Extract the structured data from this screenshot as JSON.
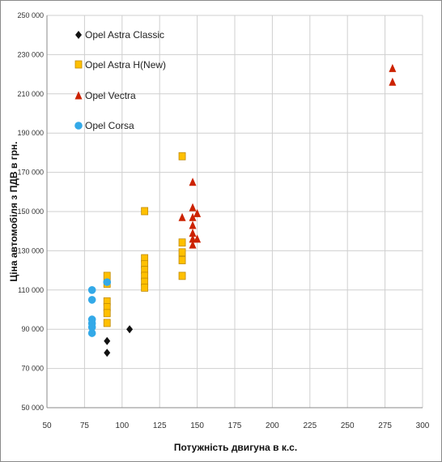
{
  "chart_data": {
    "type": "scatter",
    "xlabel": "Потужність двигуна в к.с.",
    "ylabel": "Ціна автомобіля з ПДВ в грн.",
    "xlim": [
      50,
      300
    ],
    "ylim": [
      50000,
      250000
    ],
    "x_ticks": [
      50,
      75,
      100,
      125,
      150,
      175,
      200,
      225,
      250,
      275,
      300
    ],
    "y_ticks": [
      50000,
      70000,
      90000,
      110000,
      130000,
      150000,
      170000,
      190000,
      210000,
      230000,
      250000
    ],
    "y_tick_labels": [
      "50 000",
      "70 000",
      "90 000",
      "110 000",
      "130 000",
      "150 000",
      "170 000",
      "190 000",
      "210 000",
      "230 000",
      "250 000"
    ],
    "grid": true,
    "legend_position": "top-left, inside plot",
    "series": [
      {
        "name": "Opel Astra Classic",
        "marker": "diamond",
        "color": "#111111",
        "points": [
          [
            90,
            84000
          ],
          [
            90,
            78000
          ],
          [
            105,
            90000
          ]
        ]
      },
      {
        "name": "Opel Astra H(New)",
        "marker": "square",
        "color": "#FFC000",
        "points": [
          [
            90,
            117000
          ],
          [
            90,
            113000
          ],
          [
            90,
            104000
          ],
          [
            90,
            101000
          ],
          [
            90,
            98000
          ],
          [
            90,
            93000
          ],
          [
            115,
            150000
          ],
          [
            115,
            126000
          ],
          [
            115,
            123000
          ],
          [
            115,
            120000
          ],
          [
            115,
            117000
          ],
          [
            115,
            114000
          ],
          [
            115,
            111000
          ],
          [
            140,
            178000
          ],
          [
            140,
            134000
          ],
          [
            140,
            129000
          ],
          [
            140,
            125000
          ],
          [
            140,
            117000
          ]
        ]
      },
      {
        "name": "Opel Vectra",
        "marker": "triangle",
        "color": "#CC2200",
        "points": [
          [
            140,
            147000
          ],
          [
            147,
            165000
          ],
          [
            147,
            152000
          ],
          [
            147,
            147000
          ],
          [
            147,
            143000
          ],
          [
            147,
            139000
          ],
          [
            147,
            136000
          ],
          [
            147,
            133000
          ],
          [
            150,
            149000
          ],
          [
            150,
            136000
          ],
          [
            280,
            223000
          ],
          [
            280,
            216000
          ]
        ]
      },
      {
        "name": "Opel Corsa",
        "marker": "circle",
        "color": "#33A9E8",
        "points": [
          [
            80,
            110000
          ],
          [
            80,
            105000
          ],
          [
            80,
            95000
          ],
          [
            80,
            93000
          ],
          [
            80,
            91000
          ],
          [
            80,
            88000
          ],
          [
            90,
            114000
          ]
        ]
      }
    ]
  }
}
